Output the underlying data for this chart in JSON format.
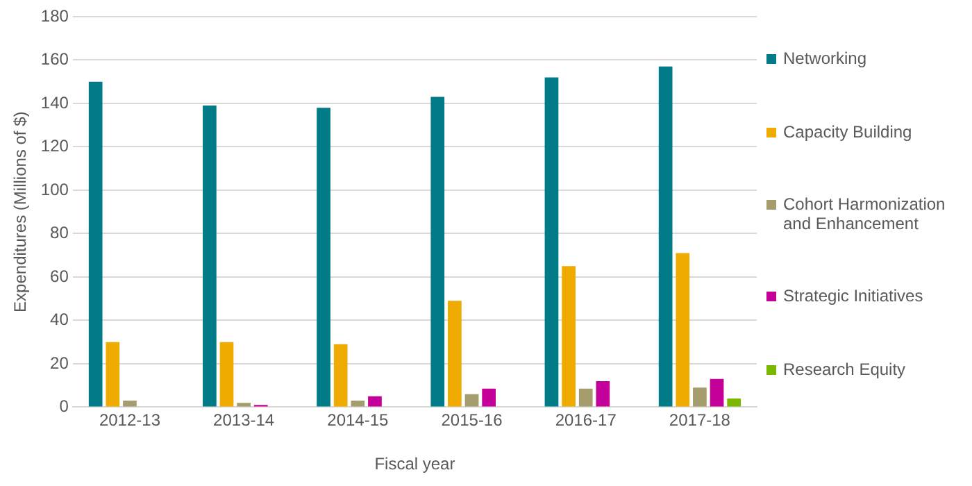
{
  "chart_data": {
    "type": "bar",
    "xlabel": "Fiscal year",
    "ylabel": "Expenditures (Millions of $)",
    "categories": [
      "2012-13",
      "2013-14",
      "2014-15",
      "2015-16",
      "2016-17",
      "2017-18"
    ],
    "series": [
      {
        "name": "Networking",
        "color": "#007b87",
        "values": [
          150,
          139,
          138,
          143,
          152,
          157
        ]
      },
      {
        "name": "Capacity Building",
        "color": "#f0ab00",
        "values": [
          30,
          30,
          29,
          49,
          65,
          71
        ]
      },
      {
        "name": "Cohort Harmonization and Enhancement",
        "color": "#a59d6e",
        "values": [
          3,
          2,
          3,
          6,
          8.5,
          9
        ]
      },
      {
        "name": "Strategic Initiatives",
        "color": "#c4009a",
        "values": [
          null,
          1,
          5,
          8.5,
          12,
          13
        ]
      },
      {
        "name": "Research Equity",
        "color": "#7ab800",
        "values": [
          null,
          null,
          null,
          null,
          null,
          4
        ]
      }
    ],
    "ylim": [
      0,
      180
    ],
    "yticks": [
      0,
      20,
      40,
      60,
      80,
      100,
      120,
      140,
      160,
      180
    ],
    "grid": "y",
    "legend": "right"
  }
}
